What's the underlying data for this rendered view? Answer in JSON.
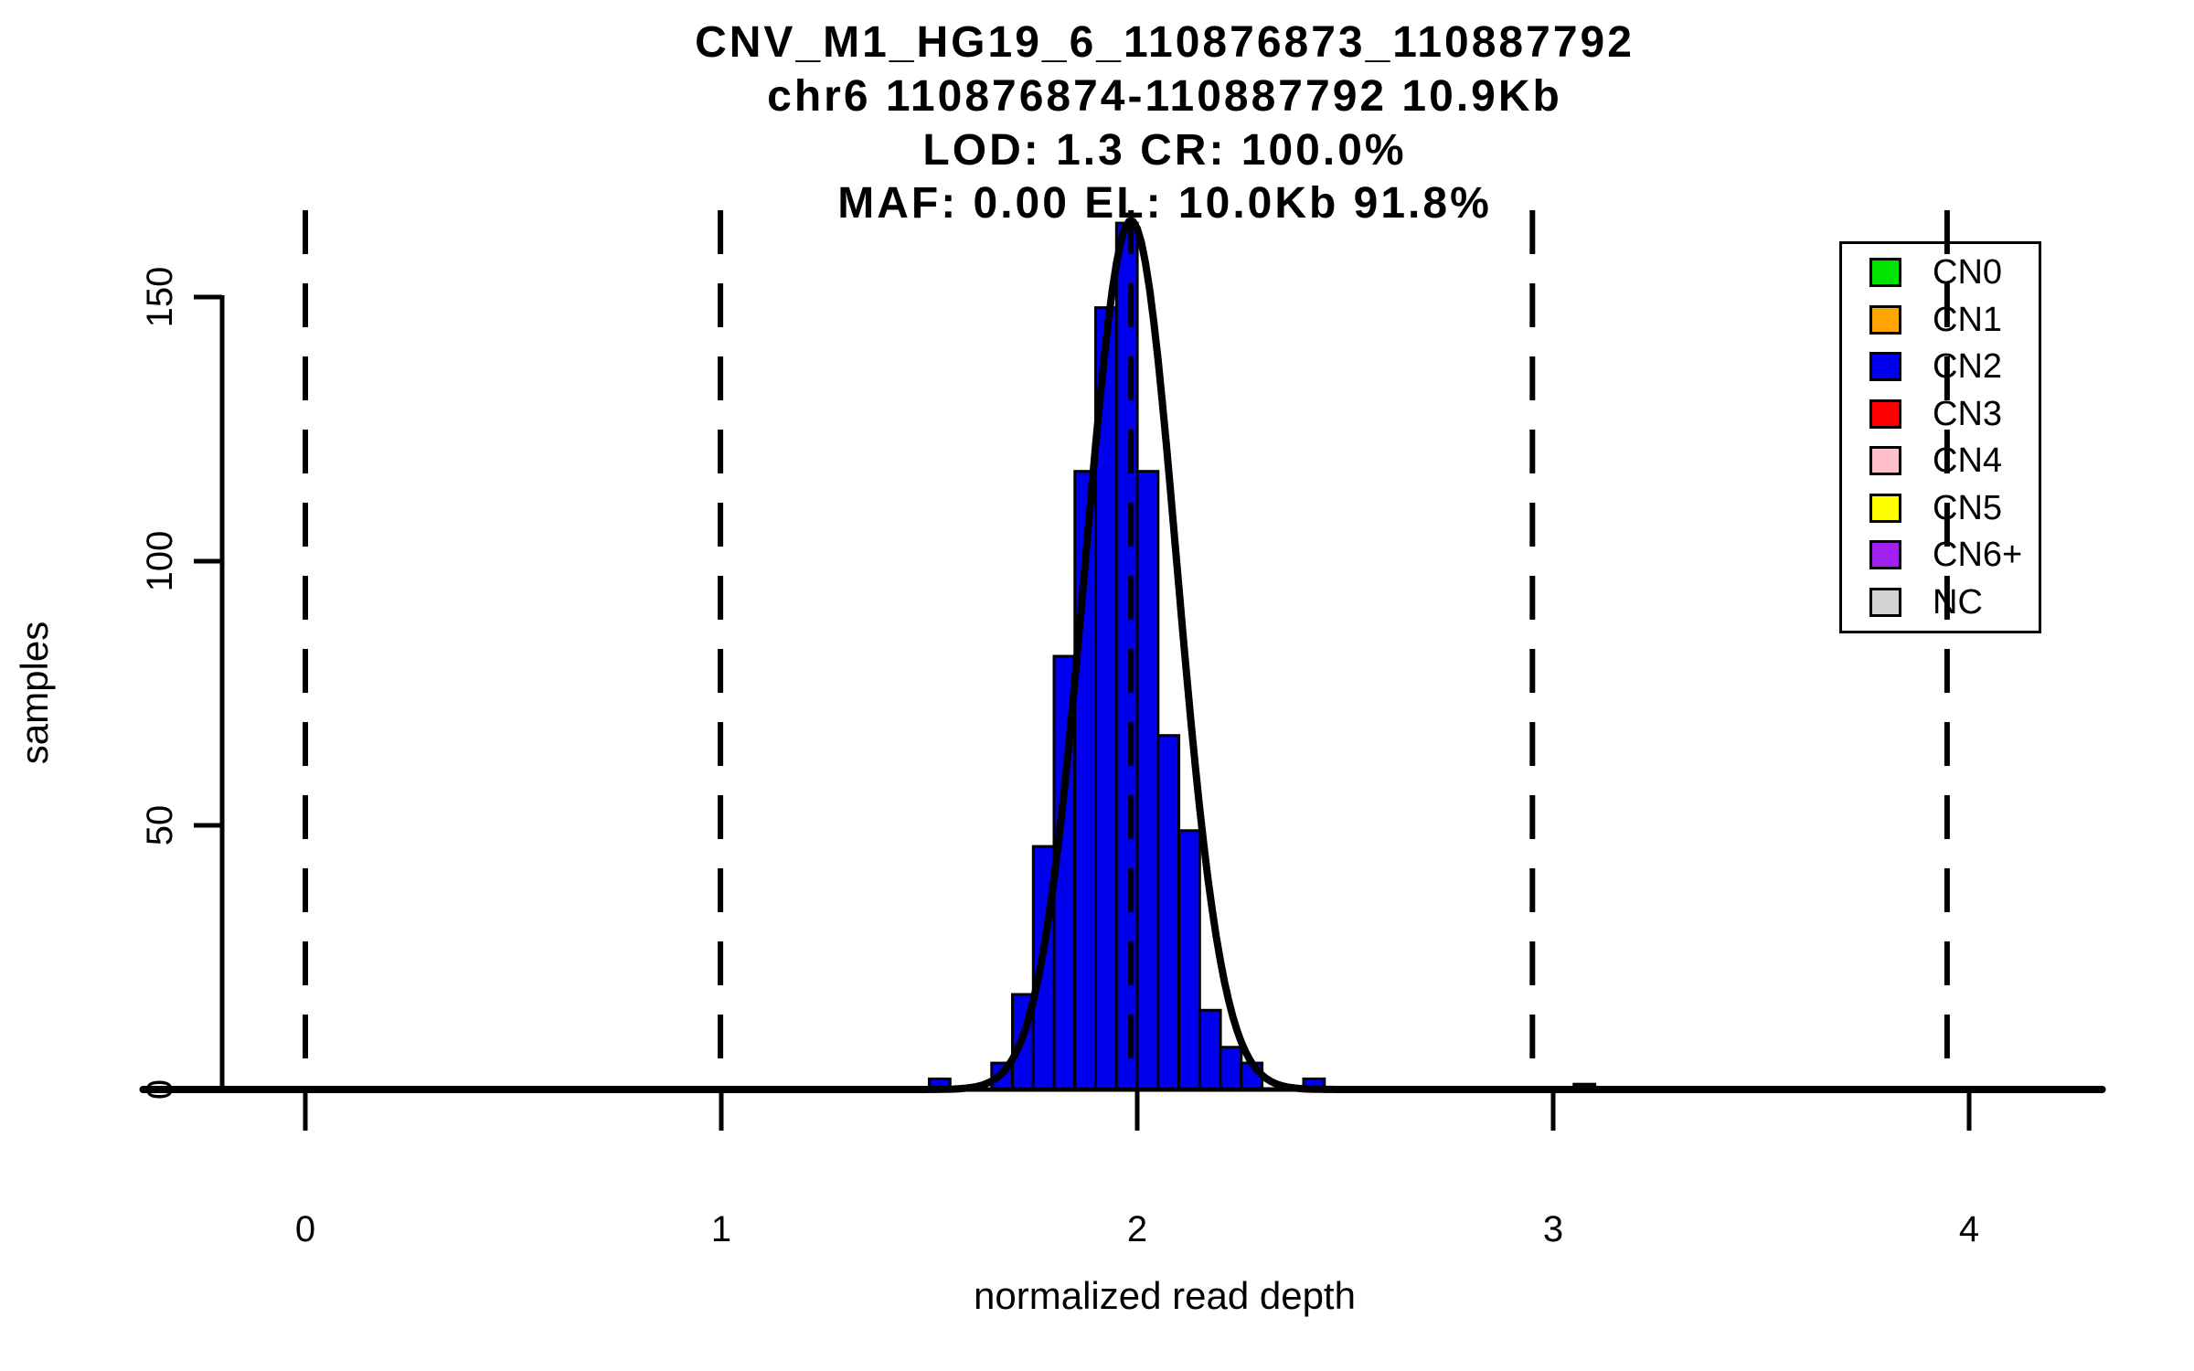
{
  "chart_data": {
    "type": "bar",
    "subtype": "histogram_with_gaussian_fit",
    "title_lines": [
      "CNV_M1_HG19_6_110876873_110887792",
      "chr6 110876874-110887792 10.9Kb",
      "LOD: 1.3 CR: 100.0%",
      "MAF: 0.00 EL: 10.0Kb 91.8%"
    ],
    "xlabel": "normalized read depth",
    "ylabel": "samples",
    "x_ticks": [
      0,
      1,
      2,
      3,
      4
    ],
    "y_ticks": [
      0,
      50,
      100,
      150
    ],
    "xlim": [
      -0.39,
      4.32
    ],
    "ylim": [
      0,
      165
    ],
    "grid": false,
    "bin_width": 0.05,
    "bins": [
      [
        1.5,
        2
      ],
      [
        1.55,
        0
      ],
      [
        1.6,
        0
      ],
      [
        1.65,
        5
      ],
      [
        1.7,
        18
      ],
      [
        1.75,
        46
      ],
      [
        1.8,
        82
      ],
      [
        1.85,
        117
      ],
      [
        1.9,
        148
      ],
      [
        1.95,
        164
      ],
      [
        2.0,
        117
      ],
      [
        2.05,
        67
      ],
      [
        2.1,
        49
      ],
      [
        2.15,
        15
      ],
      [
        2.2,
        8
      ],
      [
        2.25,
        5
      ],
      [
        2.3,
        0
      ],
      [
        2.35,
        0
      ],
      [
        2.4,
        2
      ],
      [
        3.05,
        1
      ]
    ],
    "bar_color": "#0000EE",
    "bar_border_color": "#000000",
    "fit_curve": {
      "shape": "gaussian",
      "center": 1.985,
      "sigma": 0.11,
      "amplitude": 164.5,
      "color": "#000000"
    },
    "cn_guide_lines": {
      "style": "dashed",
      "color": "#000000",
      "depths": [
        0.0,
        0.998,
        1.985,
        2.95,
        3.947
      ]
    },
    "legend": {
      "position": "top-right",
      "items": [
        {
          "label": "CN0",
          "color": "#00E400"
        },
        {
          "label": "CN1",
          "color": "#FFA500"
        },
        {
          "label": "CN2",
          "color": "#0000EE"
        },
        {
          "label": "CN3",
          "color": "#FF0000"
        },
        {
          "label": "CN4",
          "color": "#FFC0CB"
        },
        {
          "label": "CN5",
          "color": "#FFFF00"
        },
        {
          "label": "CN6+",
          "color": "#A020F0"
        },
        {
          "label": "NC",
          "color": "#D3D3D3"
        }
      ]
    }
  }
}
